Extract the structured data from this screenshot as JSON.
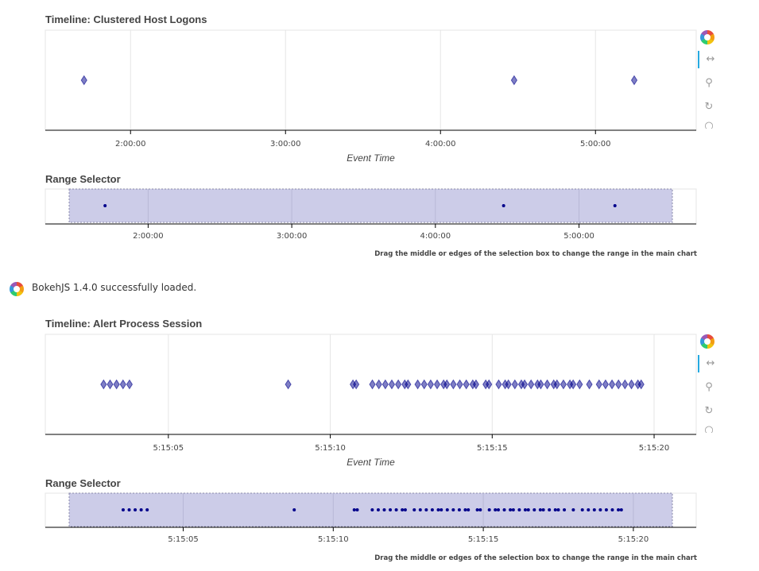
{
  "loaded_message": "BokehJS 1.4.0 successfully loaded.",
  "colors": {
    "marker": "#00008b",
    "selection": "#cccce8",
    "grid": "#e5e5e5"
  },
  "toolbar_icons": [
    "bokeh-logo-icon",
    "pan-icon",
    "zoom-icon",
    "reset-icon",
    "save-icon"
  ],
  "chart_data": [
    {
      "type": "scatter",
      "title": "Timeline: Clustered Host Logons",
      "xlabel": "Event Time",
      "x_axis": "time",
      "xlim": [
        "1:27:00",
        "5:39:00"
      ],
      "ticks": [
        "2:00:00",
        "3:00:00",
        "4:00:00",
        "5:00:00"
      ],
      "x": [
        "1:42:00",
        "4:28:30",
        "5:15:00"
      ],
      "range_selector": {
        "title": "Range Selector",
        "ticks": [
          "2:00:00",
          "3:00:00",
          "4:00:00",
          "5:00:00"
        ],
        "selection": [
          "1:27:00",
          "5:39:00"
        ],
        "note": "Drag the middle or edges of the selection box to change the range in the main chart"
      }
    },
    {
      "type": "scatter",
      "title": "Timeline: Alert Process Session",
      "xlabel": "Event Time",
      "x_axis": "time",
      "xlim": [
        "5:15:01.2",
        "5:15:21.3"
      ],
      "ticks": [
        "5:15:05",
        "5:15:10",
        "5:15:15",
        "5:15:20"
      ],
      "x": [
        "5:15:03.0",
        "5:15:03.2",
        "5:15:03.4",
        "5:15:03.6",
        "5:15:03.8",
        "5:15:08.7",
        "5:15:10.7",
        "5:15:10.8",
        "5:15:11.3",
        "5:15:11.5",
        "5:15:11.7",
        "5:15:11.9",
        "5:15:12.1",
        "5:15:12.3",
        "5:15:12.4",
        "5:15:12.7",
        "5:15:12.9",
        "5:15:13.1",
        "5:15:13.3",
        "5:15:13.5",
        "5:15:13.6",
        "5:15:13.8",
        "5:15:14.0",
        "5:15:14.2",
        "5:15:14.4",
        "5:15:14.5",
        "5:15:14.8",
        "5:15:14.9",
        "5:15:15.2",
        "5:15:15.4",
        "5:15:15.5",
        "5:15:15.7",
        "5:15:15.9",
        "5:15:16.0",
        "5:15:16.2",
        "5:15:16.4",
        "5:15:16.5",
        "5:15:16.7",
        "5:15:16.9",
        "5:15:17.0",
        "5:15:17.2",
        "5:15:17.4",
        "5:15:17.5",
        "5:15:17.7",
        "5:15:18.0",
        "5:15:18.3",
        "5:15:18.5",
        "5:15:18.7",
        "5:15:18.9",
        "5:15:19.1",
        "5:15:19.3",
        "5:15:19.5",
        "5:15:19.6"
      ],
      "range_selector": {
        "title": "Range Selector",
        "ticks": [
          "5:15:05",
          "5:15:10",
          "5:15:15",
          "5:15:20"
        ],
        "selection": [
          "5:15:01.2",
          "5:15:21.3"
        ],
        "note": "Drag the middle or edges of the selection box to change the range in the main chart"
      }
    }
  ]
}
